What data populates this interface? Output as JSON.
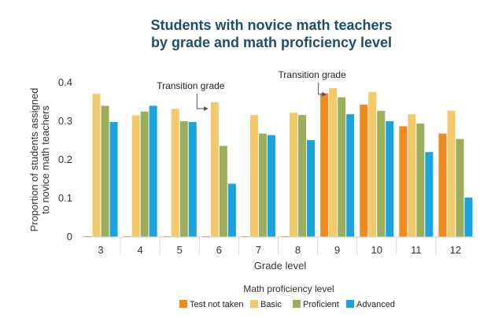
{
  "chart_data": {
    "type": "bar",
    "title_lines": [
      "Students with novice math teachers",
      "by grade and math proficiency level"
    ],
    "xlabel": "Grade level",
    "ylabel_lines": [
      "Proportion of students assigned",
      "to novice math teachers"
    ],
    "ylim": [
      0,
      0.4
    ],
    "yticks": [
      "0",
      "0.1",
      "0.2",
      "0.3",
      "0.4"
    ],
    "grid": false,
    "categories": [
      "3",
      "4",
      "5",
      "6",
      "7",
      "8",
      "9",
      "10",
      "11",
      "12"
    ],
    "series": [
      {
        "name": "Test not taken",
        "color": "#f08a1c",
        "values": [
          0.002,
          0.002,
          0.002,
          0.002,
          0.002,
          0.002,
          0.372,
          0.343,
          0.287,
          0.268
        ]
      },
      {
        "name": "Basic",
        "color": "#f2c96b",
        "values": [
          0.371,
          0.315,
          0.332,
          0.349,
          0.316,
          0.322,
          0.386,
          0.376,
          0.318,
          0.327
        ]
      },
      {
        "name": "Proficient",
        "color": "#9aae5b",
        "values": [
          0.34,
          0.325,
          0.3,
          0.236,
          0.268,
          0.316,
          0.362,
          0.327,
          0.294,
          0.254
        ]
      },
      {
        "name": "Advanced",
        "color": "#1aa3dc",
        "values": [
          0.298,
          0.34,
          0.298,
          0.138,
          0.264,
          0.251,
          0.318,
          0.3,
          0.22,
          0.102
        ]
      }
    ],
    "annotations": [
      {
        "text": "Transition grade",
        "category": "6"
      },
      {
        "text": "Transition grade",
        "category": "9"
      }
    ],
    "legend": {
      "title": "Math proficiency level",
      "position": "bottom"
    }
  }
}
